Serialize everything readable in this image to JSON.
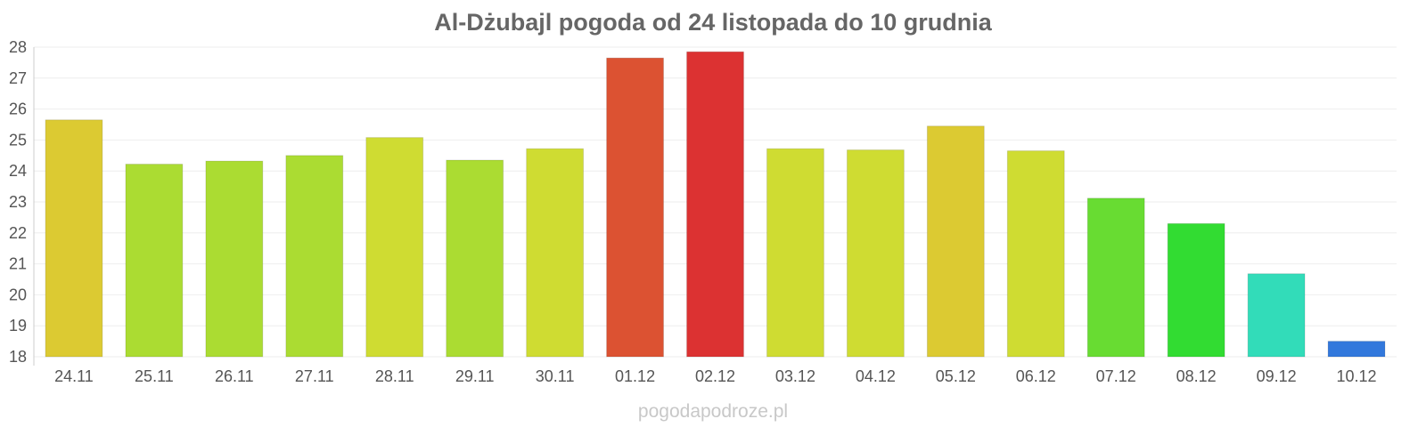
{
  "chart_data": {
    "type": "bar",
    "title": "Al-Dżubajl pogoda od 24 listopada do 10 grudnia",
    "xlabel": "",
    "ylabel": "",
    "ylim": [
      18,
      28
    ],
    "yticks": [
      18,
      19,
      20,
      21,
      22,
      23,
      24,
      25,
      26,
      27,
      28
    ],
    "grid": true,
    "categories": [
      "24.11",
      "25.11",
      "26.11",
      "27.11",
      "28.11",
      "29.11",
      "30.11",
      "01.12",
      "02.12",
      "03.12",
      "04.12",
      "05.12",
      "06.12",
      "07.12",
      "08.12",
      "09.12",
      "10.12"
    ],
    "values": [
      25.65,
      24.22,
      24.32,
      24.5,
      25.08,
      24.35,
      24.72,
      27.65,
      27.85,
      24.72,
      24.68,
      25.45,
      24.65,
      23.12,
      22.3,
      20.68,
      18.5
    ],
    "colors": [
      "#dcca32",
      "#abdc32",
      "#abdc32",
      "#abdc32",
      "#cfdc32",
      "#abdc32",
      "#cfdc32",
      "#dc5232",
      "#dc3232",
      "#cfdc32",
      "#cfdc32",
      "#dcca32",
      "#cfdc32",
      "#68dc32",
      "#32dc32",
      "#32dcb9",
      "#3278dc"
    ]
  },
  "footer": {
    "watermark": "pogodapodroze.pl"
  }
}
